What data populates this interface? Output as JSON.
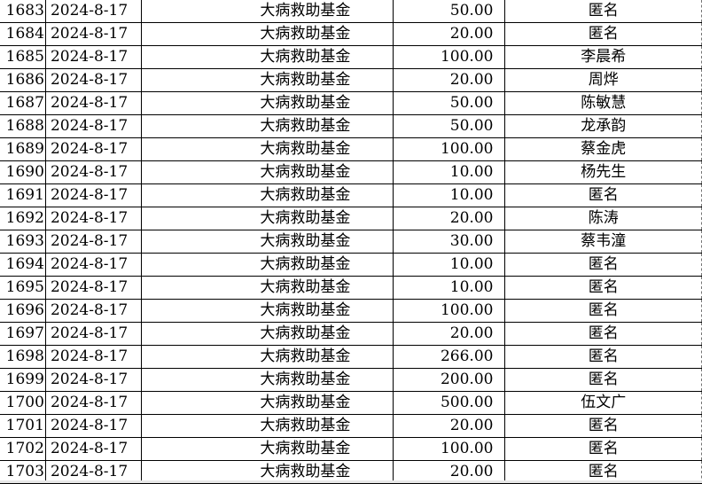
{
  "rows": [
    {
      "no": "1683",
      "date": "2024-8-17",
      "fund": "大病救助基金",
      "amount": "50.00",
      "donor": "匿名"
    },
    {
      "no": "1684",
      "date": "2024-8-17",
      "fund": "大病救助基金",
      "amount": "20.00",
      "donor": "匿名"
    },
    {
      "no": "1685",
      "date": "2024-8-17",
      "fund": "大病救助基金",
      "amount": "100.00",
      "donor": "李晨希"
    },
    {
      "no": "1686",
      "date": "2024-8-17",
      "fund": "大病救助基金",
      "amount": "20.00",
      "donor": "周烨"
    },
    {
      "no": "1687",
      "date": "2024-8-17",
      "fund": "大病救助基金",
      "amount": "50.00",
      "donor": "陈敏慧"
    },
    {
      "no": "1688",
      "date": "2024-8-17",
      "fund": "大病救助基金",
      "amount": "50.00",
      "donor": "龙承韵"
    },
    {
      "no": "1689",
      "date": "2024-8-17",
      "fund": "大病救助基金",
      "amount": "100.00",
      "donor": "蔡金虎"
    },
    {
      "no": "1690",
      "date": "2024-8-17",
      "fund": "大病救助基金",
      "amount": "10.00",
      "donor": "杨先生"
    },
    {
      "no": "1691",
      "date": "2024-8-17",
      "fund": "大病救助基金",
      "amount": "10.00",
      "donor": "匿名"
    },
    {
      "no": "1692",
      "date": "2024-8-17",
      "fund": "大病救助基金",
      "amount": "20.00",
      "donor": "陈涛"
    },
    {
      "no": "1693",
      "date": "2024-8-17",
      "fund": "大病救助基金",
      "amount": "30.00",
      "donor": "蔡韦潼"
    },
    {
      "no": "1694",
      "date": "2024-8-17",
      "fund": "大病救助基金",
      "amount": "10.00",
      "donor": "匿名"
    },
    {
      "no": "1695",
      "date": "2024-8-17",
      "fund": "大病救助基金",
      "amount": "10.00",
      "donor": "匿名"
    },
    {
      "no": "1696",
      "date": "2024-8-17",
      "fund": "大病救助基金",
      "amount": "100.00",
      "donor": "匿名"
    },
    {
      "no": "1697",
      "date": "2024-8-17",
      "fund": "大病救助基金",
      "amount": "20.00",
      "donor": "匿名"
    },
    {
      "no": "1698",
      "date": "2024-8-17",
      "fund": "大病救助基金",
      "amount": "266.00",
      "donor": "匿名"
    },
    {
      "no": "1699",
      "date": "2024-8-17",
      "fund": "大病救助基金",
      "amount": "200.00",
      "donor": "匿名"
    },
    {
      "no": "1700",
      "date": "2024-8-17",
      "fund": "大病救助基金",
      "amount": "500.00",
      "donor": "伍文广"
    },
    {
      "no": "1701",
      "date": "2024-8-17",
      "fund": "大病救助基金",
      "amount": "20.00",
      "donor": "匿名"
    },
    {
      "no": "1702",
      "date": "2024-8-17",
      "fund": "大病救助基金",
      "amount": "100.00",
      "donor": "匿名"
    },
    {
      "no": "1703",
      "date": "2024-8-17",
      "fund": "大病救助基金",
      "amount": "20.00",
      "donor": "匿名"
    }
  ]
}
